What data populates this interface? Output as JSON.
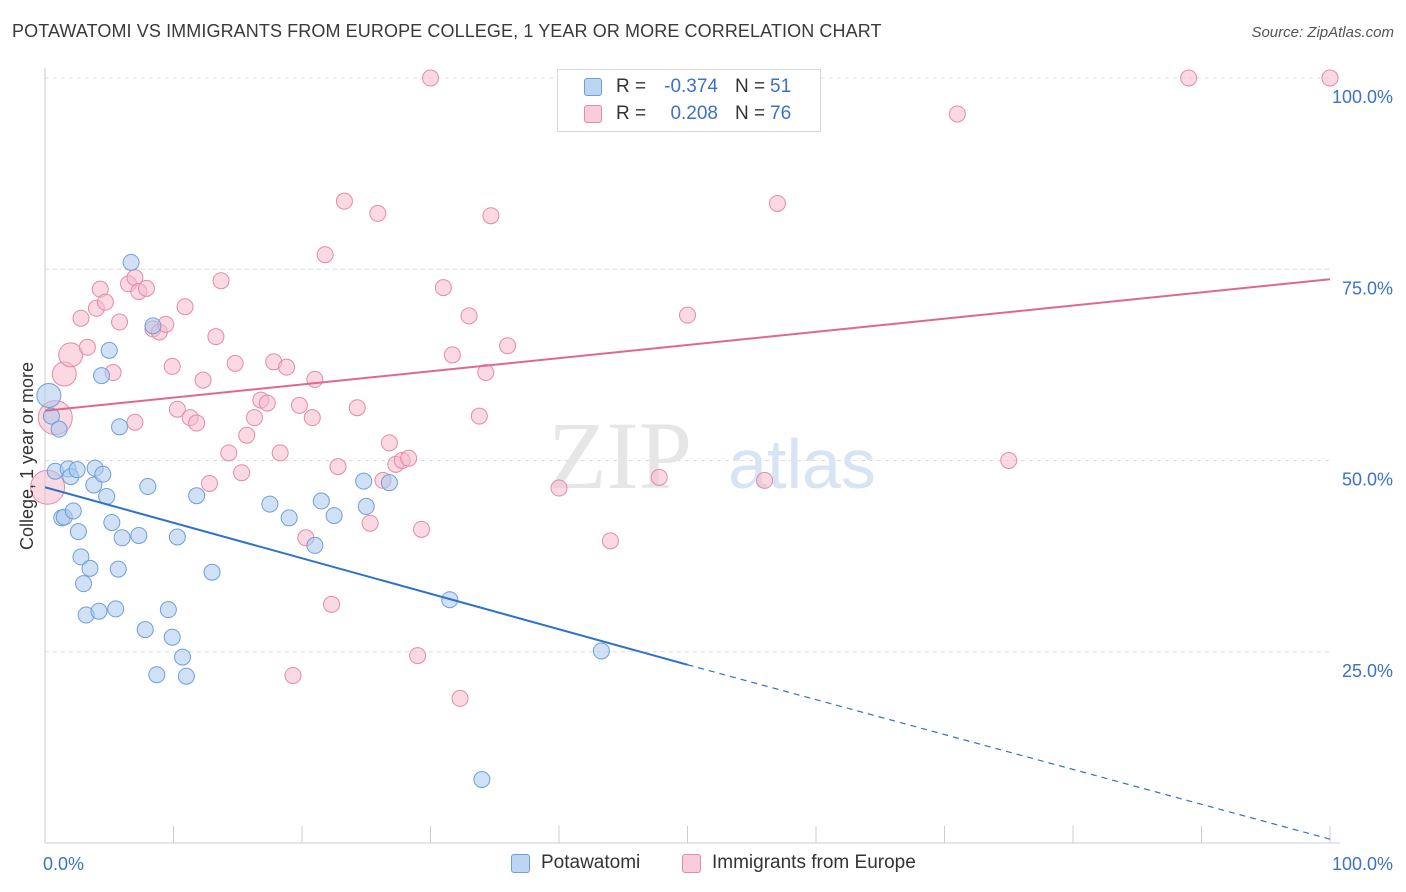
{
  "title": "POTAWATOMI VS IMMIGRANTS FROM EUROPE COLLEGE, 1 YEAR OR MORE CORRELATION CHART",
  "source": "Source: ZipAtlas.com",
  "watermark": {
    "zip": "ZIP",
    "atlas": "atlas"
  },
  "legend": {
    "rows": [
      {
        "r_label": "R =",
        "r_value": "-0.374",
        "n_label": "N =",
        "n_value": "51"
      },
      {
        "r_label": "R =",
        "r_value": "0.208",
        "n_label": "N =",
        "n_value": "76"
      }
    ]
  },
  "bottom_legend": [
    "Potawatomi",
    "Immigrants from Europe"
  ],
  "colors": {
    "blue_fill": "#a9c8ee",
    "blue_stroke": "#6f9fd8",
    "blue_line": "#2f72cc",
    "pink_fill": "#f6b9cb",
    "pink_stroke": "#e58aa8",
    "pink_line": "#e0688f",
    "axis_text": "#3b72c8",
    "grid": "#dcdcdc"
  },
  "chart_data": {
    "type": "scatter",
    "title": "POTAWATOMI VS IMMIGRANTS FROM EUROPE COLLEGE, 1 YEAR OR MORE CORRELATION CHART",
    "xlabel": "",
    "ylabel": "College, 1 year or more",
    "xlim": [
      0,
      100
    ],
    "ylim": [
      0,
      100
    ],
    "x_tick_labels": [
      "0.0%",
      "100.0%"
    ],
    "y_tick_labels": [
      "25.0%",
      "50.0%",
      "75.0%",
      "100.0%"
    ],
    "y_ticks": [
      25,
      50,
      75,
      100
    ],
    "grid": true,
    "legend_position": "top-center",
    "series": [
      {
        "name": "Potawatomi",
        "r": -0.374,
        "n": 51,
        "trend": {
          "x0": 0,
          "y0": 46.5,
          "x1": 50,
          "y1": 23.3,
          "dash_to_x": 100,
          "dash_to_y": 0.5
        },
        "points": [
          [
            0.3,
            58.5,
            2
          ],
          [
            0.5,
            55.8,
            1
          ],
          [
            0.8,
            48.6,
            1
          ],
          [
            1.1,
            54.1,
            1
          ],
          [
            1.3,
            42.5,
            1
          ],
          [
            1.5,
            42.6,
            1
          ],
          [
            1.8,
            48.9,
            1
          ],
          [
            2.0,
            47.9,
            1
          ],
          [
            2.2,
            43.4,
            1
          ],
          [
            2.5,
            48.8,
            1
          ],
          [
            2.6,
            40.7,
            1
          ],
          [
            2.8,
            37.4,
            1
          ],
          [
            3.0,
            33.9,
            1
          ],
          [
            3.2,
            29.8,
            1
          ],
          [
            3.5,
            35.9,
            1
          ],
          [
            3.8,
            46.8,
            1
          ],
          [
            3.9,
            49.0,
            1
          ],
          [
            4.2,
            30.3,
            1
          ],
          [
            4.4,
            61.1,
            1
          ],
          [
            4.5,
            48.2,
            1
          ],
          [
            4.8,
            45.3,
            1
          ],
          [
            5.0,
            64.4,
            1
          ],
          [
            5.2,
            41.9,
            1
          ],
          [
            5.5,
            30.6,
            1
          ],
          [
            5.7,
            35.8,
            1
          ],
          [
            5.8,
            54.4,
            1
          ],
          [
            6.0,
            39.9,
            1
          ],
          [
            6.7,
            75.9,
            1
          ],
          [
            7.3,
            40.2,
            1
          ],
          [
            7.8,
            27.9,
            1
          ],
          [
            8.0,
            46.6,
            1
          ],
          [
            8.4,
            67.6,
            1
          ],
          [
            8.7,
            22.0,
            1
          ],
          [
            9.6,
            30.5,
            1
          ],
          [
            9.9,
            26.9,
            1
          ],
          [
            10.3,
            40.0,
            1
          ],
          [
            10.7,
            24.3,
            1
          ],
          [
            11.0,
            21.8,
            1
          ],
          [
            11.8,
            45.4,
            1
          ],
          [
            13.0,
            35.4,
            1
          ],
          [
            17.5,
            44.3,
            1
          ],
          [
            19.0,
            42.5,
            1
          ],
          [
            21.5,
            44.7,
            1
          ],
          [
            22.5,
            42.8,
            1
          ],
          [
            21.0,
            38.9,
            1
          ],
          [
            24.8,
            47.3,
            1
          ],
          [
            26.8,
            47.1,
            1
          ],
          [
            31.5,
            31.8,
            1
          ],
          [
            43.3,
            25.1,
            1
          ],
          [
            34.0,
            8.3,
            1
          ],
          [
            25.0,
            44.0,
            1
          ]
        ]
      },
      {
        "name": "Immigrants from Europe",
        "r": 0.208,
        "n": 76,
        "trend": {
          "x0": 0,
          "y0": 56.5,
          "x1": 100,
          "y1": 73.7
        },
        "points": [
          [
            0.2,
            46.5,
            3
          ],
          [
            0.8,
            55.6,
            3
          ],
          [
            1.5,
            61.3,
            2
          ],
          [
            2.0,
            63.8,
            2
          ],
          [
            2.8,
            68.6,
            1
          ],
          [
            3.3,
            64.8,
            1
          ],
          [
            4.0,
            69.9,
            1
          ],
          [
            4.3,
            72.4,
            1
          ],
          [
            4.7,
            70.7,
            1
          ],
          [
            5.3,
            61.5,
            1
          ],
          [
            5.8,
            68.1,
            1
          ],
          [
            6.5,
            73.1,
            1
          ],
          [
            7.0,
            73.9,
            1
          ],
          [
            7.3,
            72.1,
            1
          ],
          [
            7.9,
            72.5,
            1
          ],
          [
            8.4,
            67.2,
            1
          ],
          [
            8.9,
            66.8,
            1
          ],
          [
            9.4,
            67.8,
            1
          ],
          [
            9.9,
            62.3,
            1
          ],
          [
            10.3,
            56.7,
            1
          ],
          [
            10.9,
            70.1,
            1
          ],
          [
            11.3,
            55.6,
            1
          ],
          [
            11.8,
            54.9,
            1
          ],
          [
            12.3,
            60.5,
            1
          ],
          [
            12.8,
            47.0,
            1
          ],
          [
            13.3,
            66.2,
            1
          ],
          [
            13.7,
            73.5,
            1
          ],
          [
            14.3,
            51.0,
            1
          ],
          [
            14.8,
            62.7,
            1
          ],
          [
            15.3,
            48.4,
            1
          ],
          [
            15.7,
            53.3,
            1
          ],
          [
            16.3,
            55.6,
            1
          ],
          [
            16.8,
            57.9,
            1
          ],
          [
            17.3,
            57.5,
            1
          ],
          [
            17.8,
            62.9,
            1
          ],
          [
            18.3,
            51.0,
            1
          ],
          [
            18.8,
            62.2,
            1
          ],
          [
            19.3,
            21.9,
            1
          ],
          [
            19.8,
            57.2,
            1
          ],
          [
            20.3,
            39.9,
            1
          ],
          [
            20.8,
            55.6,
            1
          ],
          [
            21.0,
            60.6,
            1
          ],
          [
            21.8,
            76.9,
            1
          ],
          [
            22.3,
            31.2,
            1
          ],
          [
            22.8,
            49.2,
            1
          ],
          [
            23.3,
            83.9,
            1
          ],
          [
            24.3,
            56.9,
            1
          ],
          [
            25.3,
            41.8,
            1
          ],
          [
            25.9,
            82.3,
            1
          ],
          [
            26.3,
            47.4,
            1
          ],
          [
            26.8,
            52.3,
            1
          ],
          [
            27.3,
            49.5,
            1
          ],
          [
            27.8,
            50.0,
            1
          ],
          [
            28.3,
            50.3,
            1
          ],
          [
            29.0,
            24.5,
            1
          ],
          [
            29.3,
            41.0,
            1
          ],
          [
            30.0,
            100.0,
            1
          ],
          [
            31.0,
            72.6,
            1
          ],
          [
            31.7,
            63.8,
            1
          ],
          [
            32.3,
            18.9,
            1
          ],
          [
            33.0,
            68.9,
            1
          ],
          [
            33.8,
            55.8,
            1
          ],
          [
            34.3,
            61.5,
            1
          ],
          [
            34.7,
            82.0,
            1
          ],
          [
            36.0,
            65.0,
            1
          ],
          [
            40.0,
            46.4,
            1
          ],
          [
            44.0,
            39.5,
            1
          ],
          [
            47.8,
            47.8,
            1
          ],
          [
            50.0,
            69.0,
            1
          ],
          [
            56.0,
            47.4,
            1
          ],
          [
            57.0,
            83.6,
            1
          ],
          [
            71.0,
            95.3,
            1
          ],
          [
            75.0,
            50.0,
            1
          ],
          [
            89.0,
            100.0,
            1
          ],
          [
            100.0,
            100.0,
            1
          ],
          [
            7.0,
            55.0,
            1
          ]
        ]
      }
    ]
  }
}
